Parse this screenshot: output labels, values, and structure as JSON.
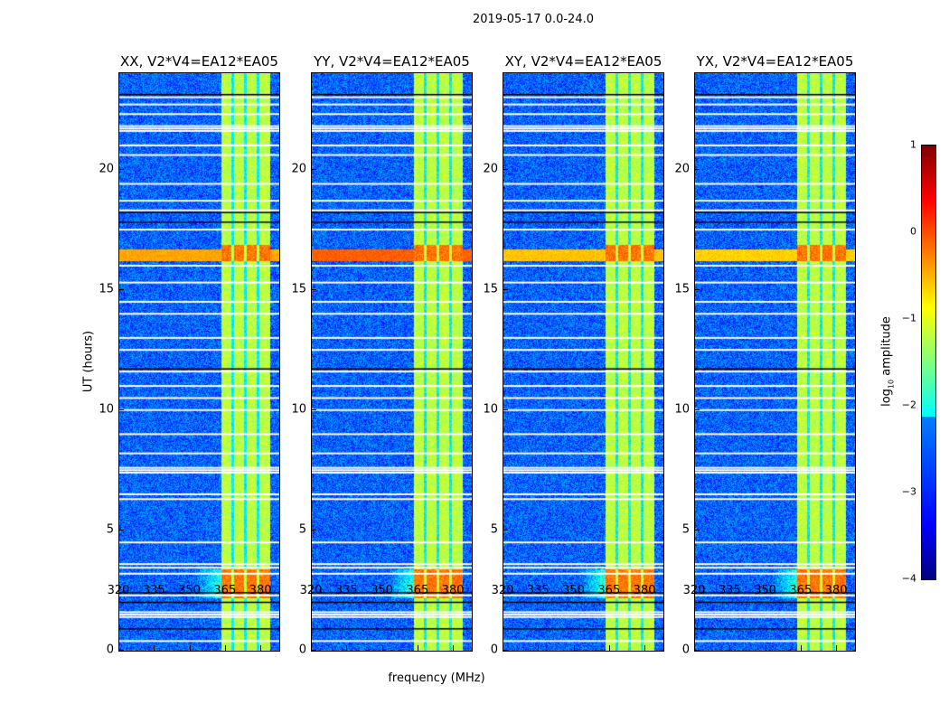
{
  "chart_data": {
    "type": "heatmap",
    "title": "2019-05-17 0.0-24.0",
    "xlabel": "frequency (MHz)",
    "ylabel": "UT (hours)",
    "xlim": [
      320,
      387.6
    ],
    "ylim": [
      0,
      24
    ],
    "xticks": [
      "320",
      "335",
      "350",
      "365",
      "380"
    ],
    "xtick_values": [
      320,
      335,
      350,
      365,
      380
    ],
    "yticks": [
      "0",
      "5",
      "10",
      "15",
      "20"
    ],
    "ytick_values": [
      0,
      5,
      10,
      15,
      20
    ],
    "panels": [
      {
        "title": "XX, V2*V4=EA12*EA05",
        "rfi_strength": 0.8
      },
      {
        "title": "YY, V2*V4=EA12*EA05",
        "rfi_strength": 1.3
      },
      {
        "title": "XY, V2*V4=EA12*EA05",
        "rfi_strength": 0.6
      },
      {
        "title": "YX, V2*V4=EA12*EA05",
        "rfi_strength": 0.5
      }
    ],
    "model": {
      "background_log_amp": -2.9,
      "band_mhz": [
        362.8,
        383.4
      ],
      "band_log_amp": -1.2,
      "channel_gaps_mhz": [
        367.8,
        373.1,
        378.5
      ],
      "hot_hours": [
        [
          2.2,
          3.4
        ],
        [
          16.2,
          16.9
        ]
      ],
      "rfi_hours": [
        16.2,
        16.7
      ],
      "flagged_hours_white": [
        0.4,
        1.4,
        1.5,
        1.6,
        2.3,
        3.2,
        3.45,
        3.6,
        4.5,
        6.3,
        6.5,
        7.4,
        7.5,
        7.6,
        8.2,
        9.0,
        10.0,
        10.5,
        11.0,
        11.6,
        12.5,
        13.0,
        14.0,
        14.5,
        15.3,
        16.0,
        17.5,
        18.3,
        18.7,
        19.4,
        20.6,
        21.0,
        21.6,
        21.7,
        21.8,
        22.3,
        22.7,
        23.0
      ],
      "flagged_hours_black": [
        0.9,
        2.0,
        2.4,
        11.7,
        17.8,
        18.2,
        23.1
      ]
    },
    "colorbar": {
      "label": "log10 amplitude",
      "label_main": "log",
      "label_sub": "10",
      "label_rest": " amplitude",
      "range": [
        -4,
        1
      ],
      "ticks": [
        "1",
        "0",
        "−1",
        "−2",
        "−3",
        "−4"
      ],
      "tick_values": [
        1,
        0,
        -1,
        -2,
        -3,
        -4
      ],
      "colormap": "jet"
    }
  }
}
